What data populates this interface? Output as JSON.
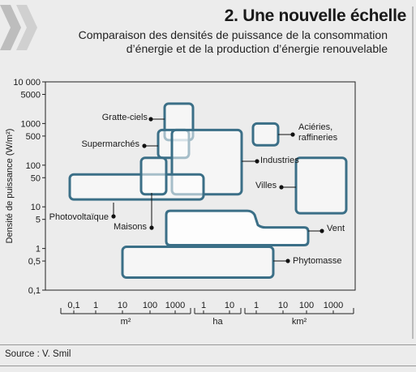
{
  "header": {
    "title": "2. Une nouvelle échelle",
    "subtitle_line1": "Comparaison des densités de puissance de la consommation",
    "subtitle_line2": "d’énergie et de la production d’énergie renouvelable"
  },
  "source": "Source : V. Smil",
  "colors": {
    "box": "#3b6f87",
    "fill": "#ffffff",
    "text": "#1a1a1a"
  },
  "chart_data": {
    "type": "range-box",
    "ylabel": "Densité de puissance (W/m²)",
    "yscale": "log",
    "ylim": [
      0.1,
      10000
    ],
    "y_ticks": [
      "10 000",
      "5000",
      "1000",
      "500",
      "100",
      "50",
      "10",
      "5",
      "1",
      "0,5",
      "0,1"
    ],
    "y_tick_values": [
      10000,
      5000,
      1000,
      500,
      100,
      50,
      10,
      5,
      1,
      0.5,
      0.1
    ],
    "x_groups": [
      {
        "unit": "m²",
        "ticks": [
          "0,1",
          "1",
          "10",
          "100",
          "1000"
        ]
      },
      {
        "unit": "ha",
        "ticks": [
          "1",
          "10"
        ]
      },
      {
        "unit": "km²",
        "ticks": [
          "1",
          "10",
          "100",
          "1000"
        ]
      }
    ],
    "categories": [
      {
        "name": "Gratte-ciels",
        "y_min": 400,
        "y_max": 3000
      },
      {
        "name": "Supermarchés",
        "y_min": 150,
        "y_max": 700
      },
      {
        "name": "Industries",
        "y_min": 20,
        "y_max": 700
      },
      {
        "name": "Aciéries, raffineries",
        "y_min": 300,
        "y_max": 1000
      },
      {
        "name": "Villes",
        "y_min": 7,
        "y_max": 150
      },
      {
        "name": "Photovoltaïque",
        "y_min": 15,
        "y_max": 60
      },
      {
        "name": "Maisons",
        "y_min": 20,
        "y_max": 150
      },
      {
        "name": "Vent",
        "y_min": 1.2,
        "y_max": 8
      },
      {
        "name": "Phytomasse",
        "y_min": 0.2,
        "y_max": 1.1
      }
    ]
  }
}
